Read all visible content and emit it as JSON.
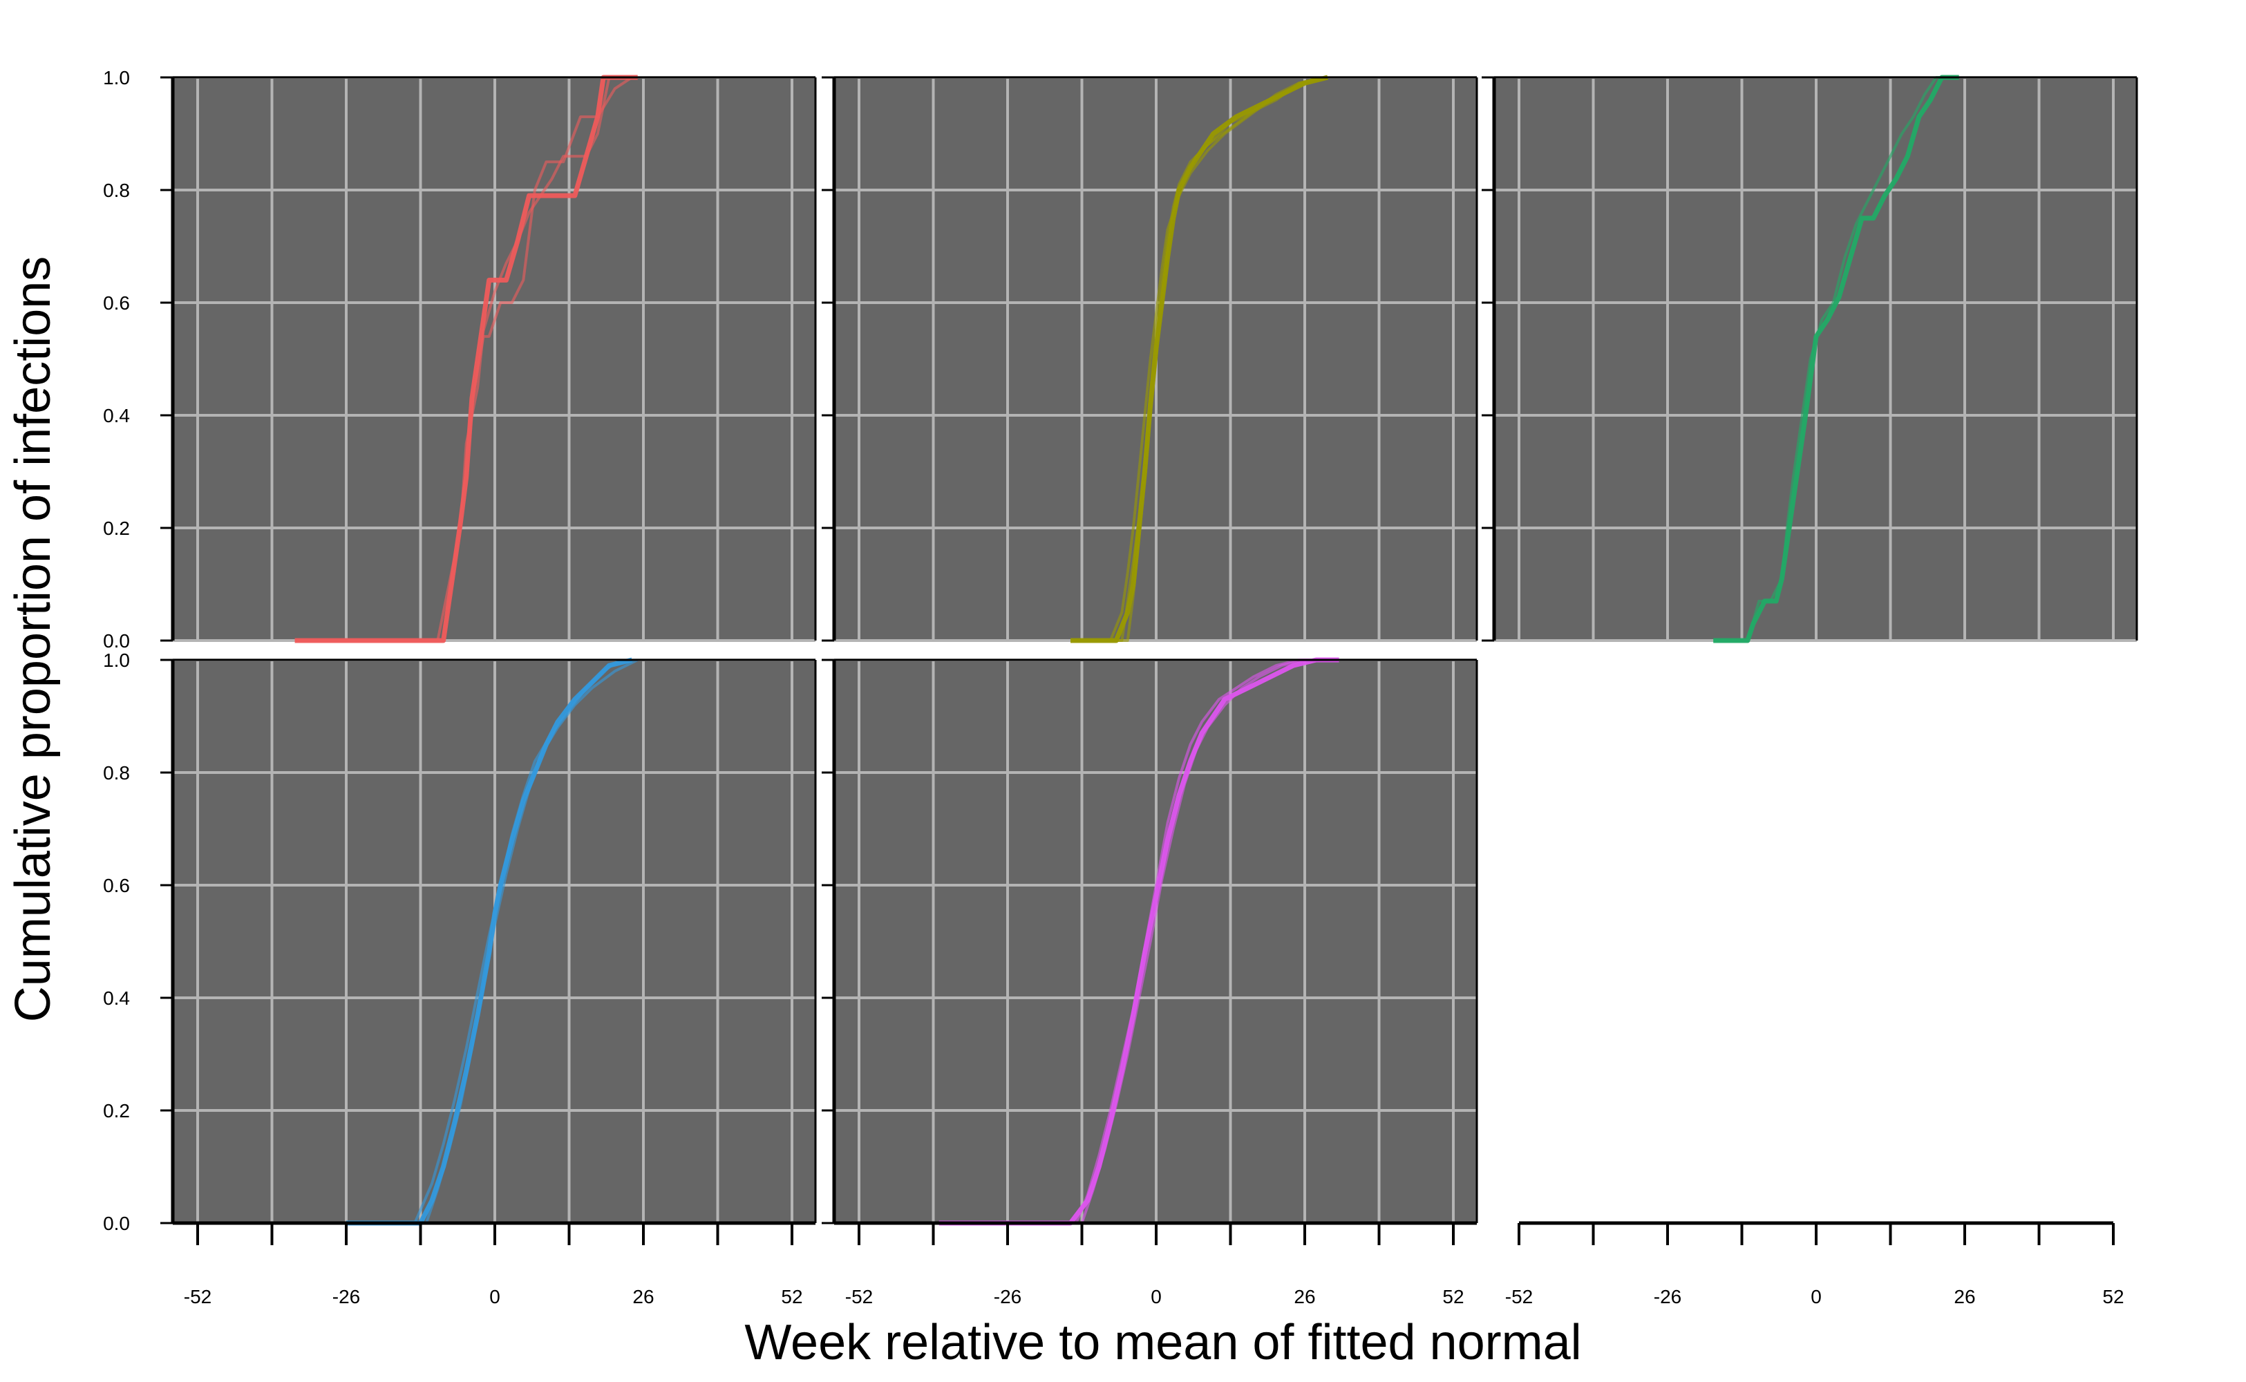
{
  "chart_data": {
    "type": "line",
    "xlabel": "Week relative to mean of fitted normal",
    "ylabel": "Cumulative proportion of infections",
    "xlim": [
      -55,
      55
    ],
    "ylim": [
      0,
      1
    ],
    "x_ticks": [
      -52,
      -26,
      0,
      26,
      52
    ],
    "x_tick_labels": [
      "-52",
      "-26",
      "0",
      "26",
      "52"
    ],
    "x_minor_ticks": [
      -52,
      -39,
      -26,
      -13,
      0,
      13,
      26,
      39,
      52
    ],
    "y_ticks": [
      0,
      0.2,
      0.4,
      0.6,
      0.8,
      1.0
    ],
    "y_tick_labels": [
      "0.0",
      "0.2",
      "0.4",
      "0.6",
      "0.8",
      "1.0"
    ],
    "grid": true,
    "legend": "none",
    "panel_background": "#666666",
    "grid_color": "#b4b4b4",
    "panels": [
      {
        "color": "#ef5b5b",
        "series": [
          {
            "x": [
              -35,
              -9,
              -8,
              -7,
              -6,
              -5,
              -4,
              -3,
              -2,
              -1,
              0,
              2,
              4,
              6,
              8,
              10,
              14,
              16,
              18,
              19,
              20,
              25
            ],
            "y": [
              0,
              0,
              0.07,
              0.14,
              0.21,
              0.29,
              0.43,
              0.5,
              0.57,
              0.64,
              0.64,
              0.64,
              0.71,
              0.79,
              0.79,
              0.79,
              0.79,
              0.86,
              0.93,
              1.0,
              1.0,
              1.0
            ]
          },
          {
            "x": [
              -35,
              -10,
              -8,
              -6,
              -5,
              -3,
              -2,
              0,
              2,
              4,
              6,
              8,
              10,
              12,
              16,
              18,
              20,
              24
            ],
            "y": [
              0,
              0,
              0.1,
              0.2,
              0.35,
              0.45,
              0.55,
              0.62,
              0.67,
              0.71,
              0.76,
              0.79,
              0.82,
              0.86,
              0.86,
              0.9,
              1.0,
              1.0
            ]
          },
          {
            "x": [
              -35,
              -9,
              -7,
              -5,
              -4,
              -2,
              -1,
              1,
              3,
              5,
              7,
              9,
              12,
              15,
              18,
              21,
              24
            ],
            "y": [
              0,
              0,
              0.14,
              0.3,
              0.42,
              0.54,
              0.54,
              0.6,
              0.6,
              0.64,
              0.8,
              0.85,
              0.85,
              0.93,
              0.93,
              0.98,
              1.0
            ]
          }
        ]
      },
      {
        "color": "#999900",
        "series": [
          {
            "x": [
              -15,
              -7,
              -5,
              -4,
              -3,
              -2,
              -1,
              0,
              1,
              2,
              3,
              4,
              6,
              8,
              10,
              14,
              18,
              22,
              26,
              30
            ],
            "y": [
              0,
              0,
              0.05,
              0.1,
              0.2,
              0.3,
              0.42,
              0.52,
              0.6,
              0.68,
              0.75,
              0.8,
              0.84,
              0.87,
              0.9,
              0.93,
              0.95,
              0.97,
              0.99,
              1.0
            ]
          },
          {
            "x": [
              -15,
              -6,
              -5,
              -4,
              -3,
              -2,
              -1,
              0,
              1,
              2,
              3,
              4,
              6,
              9,
              13,
              17,
              21,
              25,
              29
            ],
            "y": [
              0,
              0,
              0.07,
              0.14,
              0.22,
              0.32,
              0.44,
              0.55,
              0.63,
              0.71,
              0.77,
              0.81,
              0.85,
              0.88,
              0.91,
              0.94,
              0.96,
              0.99,
              1.0
            ]
          },
          {
            "x": [
              -15,
              -8,
              -6,
              -5,
              -4,
              -3,
              -2,
              -1,
              0,
              1,
              2,
              4,
              6,
              9,
              12,
              16,
              20,
              24,
              28
            ],
            "y": [
              0,
              0,
              0.05,
              0.12,
              0.2,
              0.3,
              0.4,
              0.5,
              0.58,
              0.66,
              0.73,
              0.79,
              0.83,
              0.87,
              0.9,
              0.93,
              0.96,
              0.98,
              1.0
            ]
          },
          {
            "x": [
              -15,
              -5,
              -4,
              -3,
              -2,
              -1,
              0,
              1,
              2,
              3,
              5,
              7,
              10,
              13,
              17,
              21,
              25,
              30
            ],
            "y": [
              0,
              0,
              0.08,
              0.18,
              0.29,
              0.4,
              0.5,
              0.6,
              0.69,
              0.76,
              0.82,
              0.86,
              0.89,
              0.92,
              0.94,
              0.97,
              0.99,
              1.0
            ]
          }
        ]
      },
      {
        "color": "#22aa66",
        "series": [
          {
            "x": [
              -18,
              -12,
              -11,
              -9,
              -7,
              -6,
              -5,
              -4,
              -3,
              -2,
              0,
              2,
              4,
              6,
              8,
              10,
              12,
              14,
              16,
              18,
              20,
              22,
              25
            ],
            "y": [
              0,
              0,
              0.03,
              0.07,
              0.07,
              0.11,
              0.18,
              0.25,
              0.32,
              0.39,
              0.54,
              0.57,
              0.61,
              0.68,
              0.75,
              0.75,
              0.79,
              0.82,
              0.86,
              0.93,
              0.96,
              1.0,
              1.0
            ]
          },
          {
            "x": [
              -18,
              -12,
              -10,
              -8,
              -6,
              -5,
              -4,
              -3,
              -1,
              1,
              3,
              5,
              7,
              9,
              11,
              13,
              15,
              17,
              19,
              21,
              24
            ],
            "y": [
              0,
              0,
              0.07,
              0.07,
              0.11,
              0.21,
              0.29,
              0.36,
              0.5,
              0.57,
              0.6,
              0.68,
              0.74,
              0.78,
              0.82,
              0.86,
              0.9,
              0.93,
              0.97,
              1.0,
              1.0
            ]
          }
        ]
      },
      {
        "color": "#3399dd",
        "series": [
          {
            "x": [
              -26,
              -13,
              -11,
              -9,
              -7,
              -5,
              -3,
              -1,
              0,
              1,
              3,
              5,
              7,
              9,
              11,
              14,
              17,
              20,
              24
            ],
            "y": [
              0,
              0,
              0.04,
              0.1,
              0.18,
              0.27,
              0.37,
              0.48,
              0.55,
              0.6,
              0.68,
              0.75,
              0.8,
              0.85,
              0.89,
              0.93,
              0.96,
              0.99,
              1.0
            ]
          },
          {
            "x": [
              -26,
              -12,
              -10,
              -8,
              -6,
              -4,
              -2,
              0,
              2,
              4,
              6,
              8,
              11,
              14,
              17,
              21,
              25
            ],
            "y": [
              0,
              0,
              0.06,
              0.13,
              0.21,
              0.31,
              0.42,
              0.53,
              0.62,
              0.7,
              0.77,
              0.83,
              0.88,
              0.92,
              0.95,
              0.98,
              1.0
            ]
          },
          {
            "x": [
              -26,
              -14,
              -11,
              -9,
              -7,
              -5,
              -3,
              -1,
              1,
              3,
              5,
              7,
              10,
              13,
              16,
              19,
              22
            ],
            "y": [
              0,
              0,
              0.07,
              0.14,
              0.22,
              0.31,
              0.41,
              0.51,
              0.6,
              0.69,
              0.76,
              0.82,
              0.87,
              0.91,
              0.95,
              0.98,
              1.0
            ]
          }
        ]
      },
      {
        "color": "#dd55ee",
        "series": [
          {
            "x": [
              -38,
              -15,
              -12,
              -10,
              -8,
              -6,
              -4,
              -2,
              0,
              2,
              4,
              6,
              8,
              10,
              12,
              16,
              20,
              24,
              28,
              32
            ],
            "y": [
              0,
              0,
              0.04,
              0.1,
              0.18,
              0.27,
              0.37,
              0.48,
              0.58,
              0.68,
              0.76,
              0.82,
              0.87,
              0.9,
              0.93,
              0.95,
              0.97,
              0.99,
              1.0,
              1.0
            ]
          },
          {
            "x": [
              -38,
              -13,
              -11,
              -9,
              -7,
              -5,
              -3,
              -1,
              1,
              3,
              5,
              7,
              9,
              12,
              15,
              18,
              22,
              26,
              30
            ],
            "y": [
              0,
              0,
              0.06,
              0.13,
              0.21,
              0.3,
              0.4,
              0.5,
              0.61,
              0.7,
              0.78,
              0.84,
              0.88,
              0.92,
              0.95,
              0.97,
              0.99,
              1.0,
              1.0
            ]
          },
          {
            "x": [
              -38,
              -14,
              -12,
              -10,
              -8,
              -6,
              -4,
              -2,
              0,
              2,
              4,
              6,
              8,
              11,
              14,
              17,
              21,
              25,
              30
            ],
            "y": [
              0,
              0,
              0.05,
              0.12,
              0.2,
              0.29,
              0.38,
              0.49,
              0.6,
              0.71,
              0.79,
              0.85,
              0.89,
              0.93,
              0.95,
              0.97,
              0.99,
              1.0,
              1.0
            ]
          }
        ]
      }
    ]
  }
}
